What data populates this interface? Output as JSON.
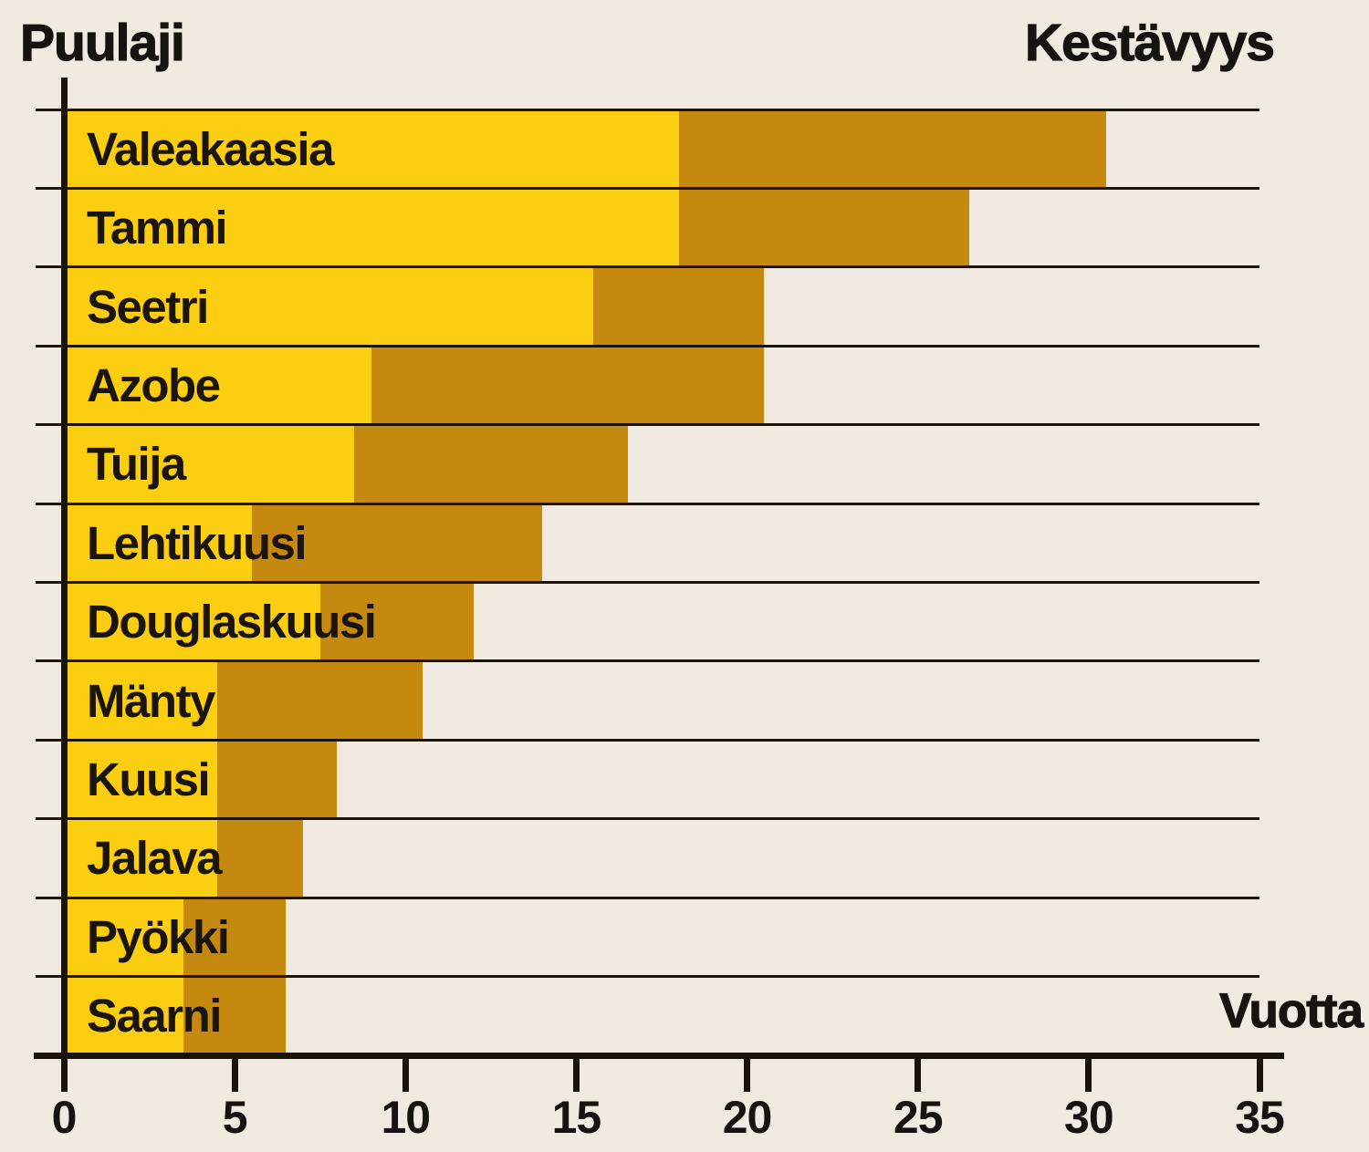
{
  "chart_data": {
    "type": "bar",
    "orientation": "horizontal",
    "title_left": "Puulaji",
    "title_right": "Kestävyys",
    "xlabel": "Vuotta",
    "xlim": [
      0,
      35
    ],
    "x_ticks": [
      "0",
      "5",
      "10",
      "15",
      "20",
      "25",
      "30",
      "35"
    ],
    "grid": "horizontal-row-lines",
    "legend": "none",
    "categories": [
      "Valeakaasia",
      "Tammi",
      "Seetri",
      "Azobe",
      "Tuija",
      "Lehtikuusi",
      "Douglaskuusi",
      "Mänty",
      "Kuusi",
      "Jalava",
      "Pyökki",
      "Saarni"
    ],
    "series": [
      {
        "name": "kestavyys-min-vuotta",
        "color": "#FBCE12",
        "values": [
          18,
          18,
          15.5,
          9,
          8.5,
          5.5,
          7.5,
          4.5,
          4.5,
          4.5,
          3.5,
          3.5
        ]
      },
      {
        "name": "kestavyys-max-vuotta",
        "color": "#C6890F",
        "values": [
          30.5,
          26.5,
          20.5,
          20.5,
          16.5,
          14,
          12,
          10.5,
          8,
          7,
          6.5,
          6.5
        ]
      }
    ],
    "colors": {
      "background": "#F0EAE1",
      "bar_min": "#FBCE12",
      "bar_max": "#C6890F",
      "line": "#191309",
      "text": "#161310"
    }
  }
}
